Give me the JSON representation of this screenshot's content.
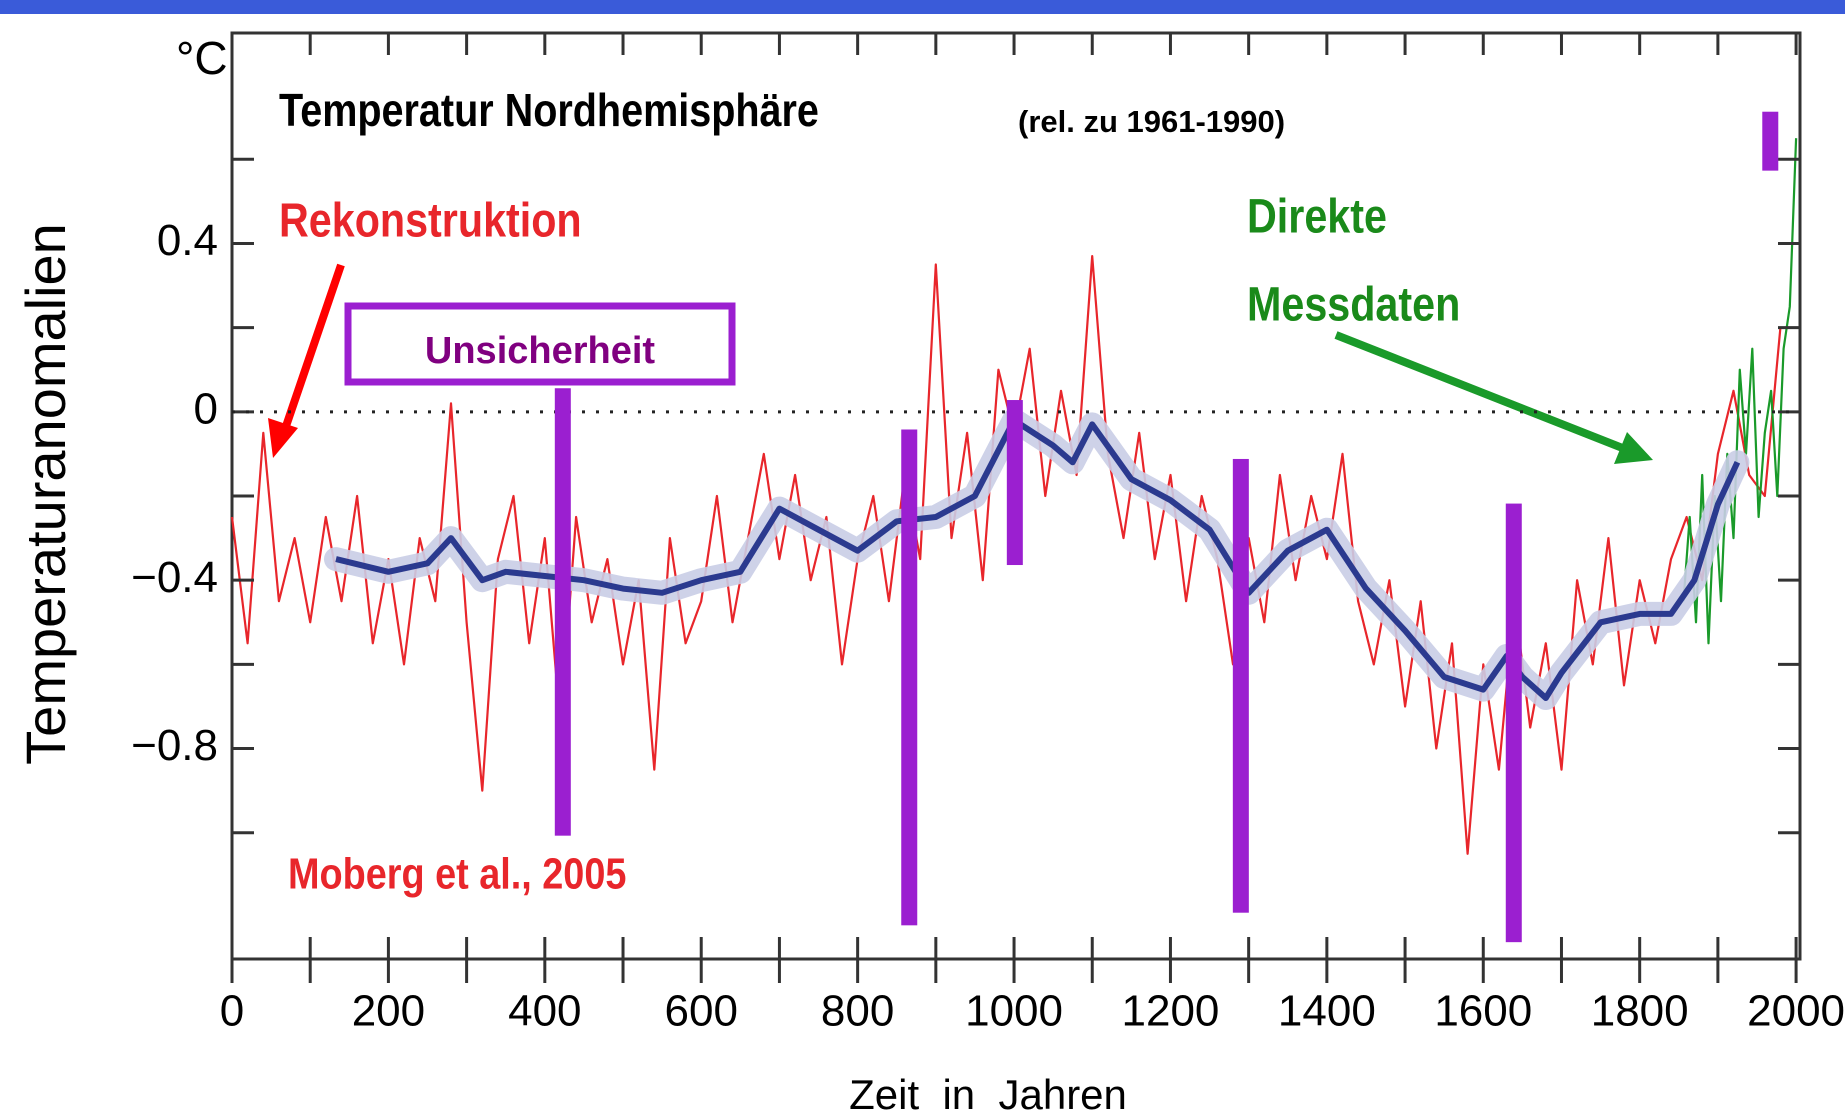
{
  "chart_data": {
    "type": "line",
    "title": "Temperatur Nordhemisphäre",
    "subtitle": "(rel. zu 1961-1990)",
    "unit_label": "°C",
    "ylabel": "Temperaturanomalien",
    "xlabel": "Zeit  in  Jahren",
    "xlim": [
      0,
      2005
    ],
    "ylim": [
      -1.3,
      0.9
    ],
    "xticks": [
      0,
      200,
      400,
      600,
      800,
      1000,
      1200,
      1400,
      1600,
      1800,
      2000
    ],
    "xminorticks": [
      100,
      300,
      500,
      700,
      900,
      1100,
      1300,
      1500,
      1700,
      1900
    ],
    "yticks": [
      0.4,
      0,
      {
        "value": -0.4,
        "label": "−0.4"
      },
      {
        "value": -0.8,
        "label": "−0.8"
      }
    ],
    "yminorticks": [
      0.6,
      0.2,
      -0.2,
      -0.6,
      -1.0
    ],
    "series": [
      {
        "color": "#e8262b",
        "x": [
          0,
          20,
          40,
          60,
          80,
          100,
          120,
          140,
          160,
          180,
          200,
          220,
          240,
          260,
          280,
          300,
          320,
          340,
          360,
          380,
          400,
          420,
          440,
          460,
          480,
          500,
          520,
          540,
          560,
          580,
          600,
          620,
          640,
          660,
          680,
          700,
          720,
          740,
          760,
          780,
          800,
          820,
          840,
          860,
          880,
          900,
          920,
          940,
          960,
          980,
          1000,
          1020,
          1040,
          1060,
          1080,
          1100,
          1120,
          1140,
          1160,
          1180,
          1200,
          1220,
          1240,
          1260,
          1280,
          1300,
          1320,
          1340,
          1360,
          1380,
          1400,
          1420,
          1440,
          1460,
          1480,
          1500,
          1520,
          1540,
          1560,
          1580,
          1600,
          1620,
          1640,
          1660,
          1680,
          1700,
          1720,
          1740,
          1760,
          1780,
          1800,
          1820,
          1840,
          1860,
          1880,
          1900,
          1920,
          1940,
          1960,
          1980
        ],
        "values": [
          -0.25,
          -0.55,
          -0.05,
          -0.45,
          -0.3,
          -0.5,
          -0.25,
          -0.45,
          -0.2,
          -0.55,
          -0.35,
          -0.6,
          -0.3,
          -0.45,
          0.02,
          -0.5,
          -0.9,
          -0.35,
          -0.2,
          -0.55,
          -0.3,
          -0.75,
          -0.25,
          -0.5,
          -0.35,
          -0.6,
          -0.4,
          -0.85,
          -0.3,
          -0.55,
          -0.45,
          -0.2,
          -0.5,
          -0.3,
          -0.1,
          -0.35,
          -0.15,
          -0.4,
          -0.25,
          -0.6,
          -0.35,
          -0.2,
          -0.45,
          -0.15,
          -0.35,
          0.35,
          -0.3,
          -0.05,
          -0.4,
          0.1,
          -0.05,
          0.15,
          -0.2,
          0.05,
          -0.15,
          0.37,
          -0.1,
          -0.3,
          -0.05,
          -0.35,
          -0.15,
          -0.45,
          -0.2,
          -0.35,
          -0.6,
          -0.3,
          -0.5,
          -0.15,
          -0.4,
          -0.2,
          -0.35,
          -0.1,
          -0.45,
          -0.6,
          -0.4,
          -0.7,
          -0.45,
          -0.8,
          -0.55,
          -1.05,
          -0.6,
          -0.85,
          -0.45,
          -0.75,
          -0.55,
          -0.85,
          -0.4,
          -0.6,
          -0.3,
          -0.65,
          -0.4,
          -0.55,
          -0.35,
          -0.25,
          -0.4,
          -0.1,
          0.05,
          -0.15,
          -0.2,
          0.2
        ]
      },
      {
        "color": "#1a9a2a",
        "x": [
          1856,
          1864,
          1872,
          1880,
          1888,
          1896,
          1904,
          1912,
          1920,
          1928,
          1936,
          1944,
          1952,
          1960,
          1968,
          1976,
          1984,
          1992,
          2000
        ],
        "values": [
          -0.45,
          -0.25,
          -0.5,
          -0.15,
          -0.55,
          -0.2,
          -0.45,
          -0.1,
          -0.3,
          0.1,
          -0.1,
          0.15,
          -0.25,
          -0.05,
          0.05,
          -0.2,
          0.15,
          0.25,
          0.65
        ]
      },
      {
        "color": "#2b3a8f",
        "x": [
          133,
          200,
          250,
          280,
          320,
          350,
          400,
          450,
          500,
          550,
          600,
          650,
          700,
          750,
          800,
          850,
          900,
          950,
          1000,
          1050,
          1075,
          1100,
          1150,
          1200,
          1250,
          1300,
          1350,
          1400,
          1450,
          1500,
          1550,
          1600,
          1630,
          1650,
          1680,
          1700,
          1750,
          1800,
          1840,
          1870,
          1900,
          1925
        ],
        "values": [
          -0.35,
          -0.38,
          -0.36,
          -0.3,
          -0.4,
          -0.38,
          -0.39,
          -0.4,
          -0.42,
          -0.43,
          -0.4,
          -0.38,
          -0.23,
          -0.28,
          -0.33,
          -0.26,
          -0.25,
          -0.2,
          -0.02,
          -0.08,
          -0.12,
          -0.03,
          -0.16,
          -0.21,
          -0.28,
          -0.43,
          -0.33,
          -0.28,
          -0.42,
          -0.52,
          -0.63,
          -0.66,
          -0.58,
          -0.63,
          -0.68,
          -0.62,
          -0.5,
          -0.48,
          -0.48,
          -0.4,
          -0.22,
          -0.12
        ]
      }
    ],
    "uncertainty_bars": {
      "color": "#9b1fd0",
      "x": [
        423,
        866,
        1001,
        1290,
        1639,
        1967
      ],
      "high": [
        0.056,
        -0.042,
        0.028,
        -0.112,
        -0.218,
        0.713
      ],
      "low": [
        -1.007,
        -1.22,
        -0.364,
        -1.19,
        -1.26,
        0.573
      ]
    },
    "annotations": [
      {
        "text": "Rekonstruktion",
        "color": "#e8262b"
      },
      {
        "text": "Direkte",
        "color": "#1a8a1a"
      },
      {
        "text": "Messdaten",
        "color": "#1a8a1a"
      },
      {
        "text": "Unsicherheit",
        "color": "#800080"
      },
      {
        "text": "Moberg et al., 2005",
        "color": "#e8262b"
      }
    ]
  }
}
